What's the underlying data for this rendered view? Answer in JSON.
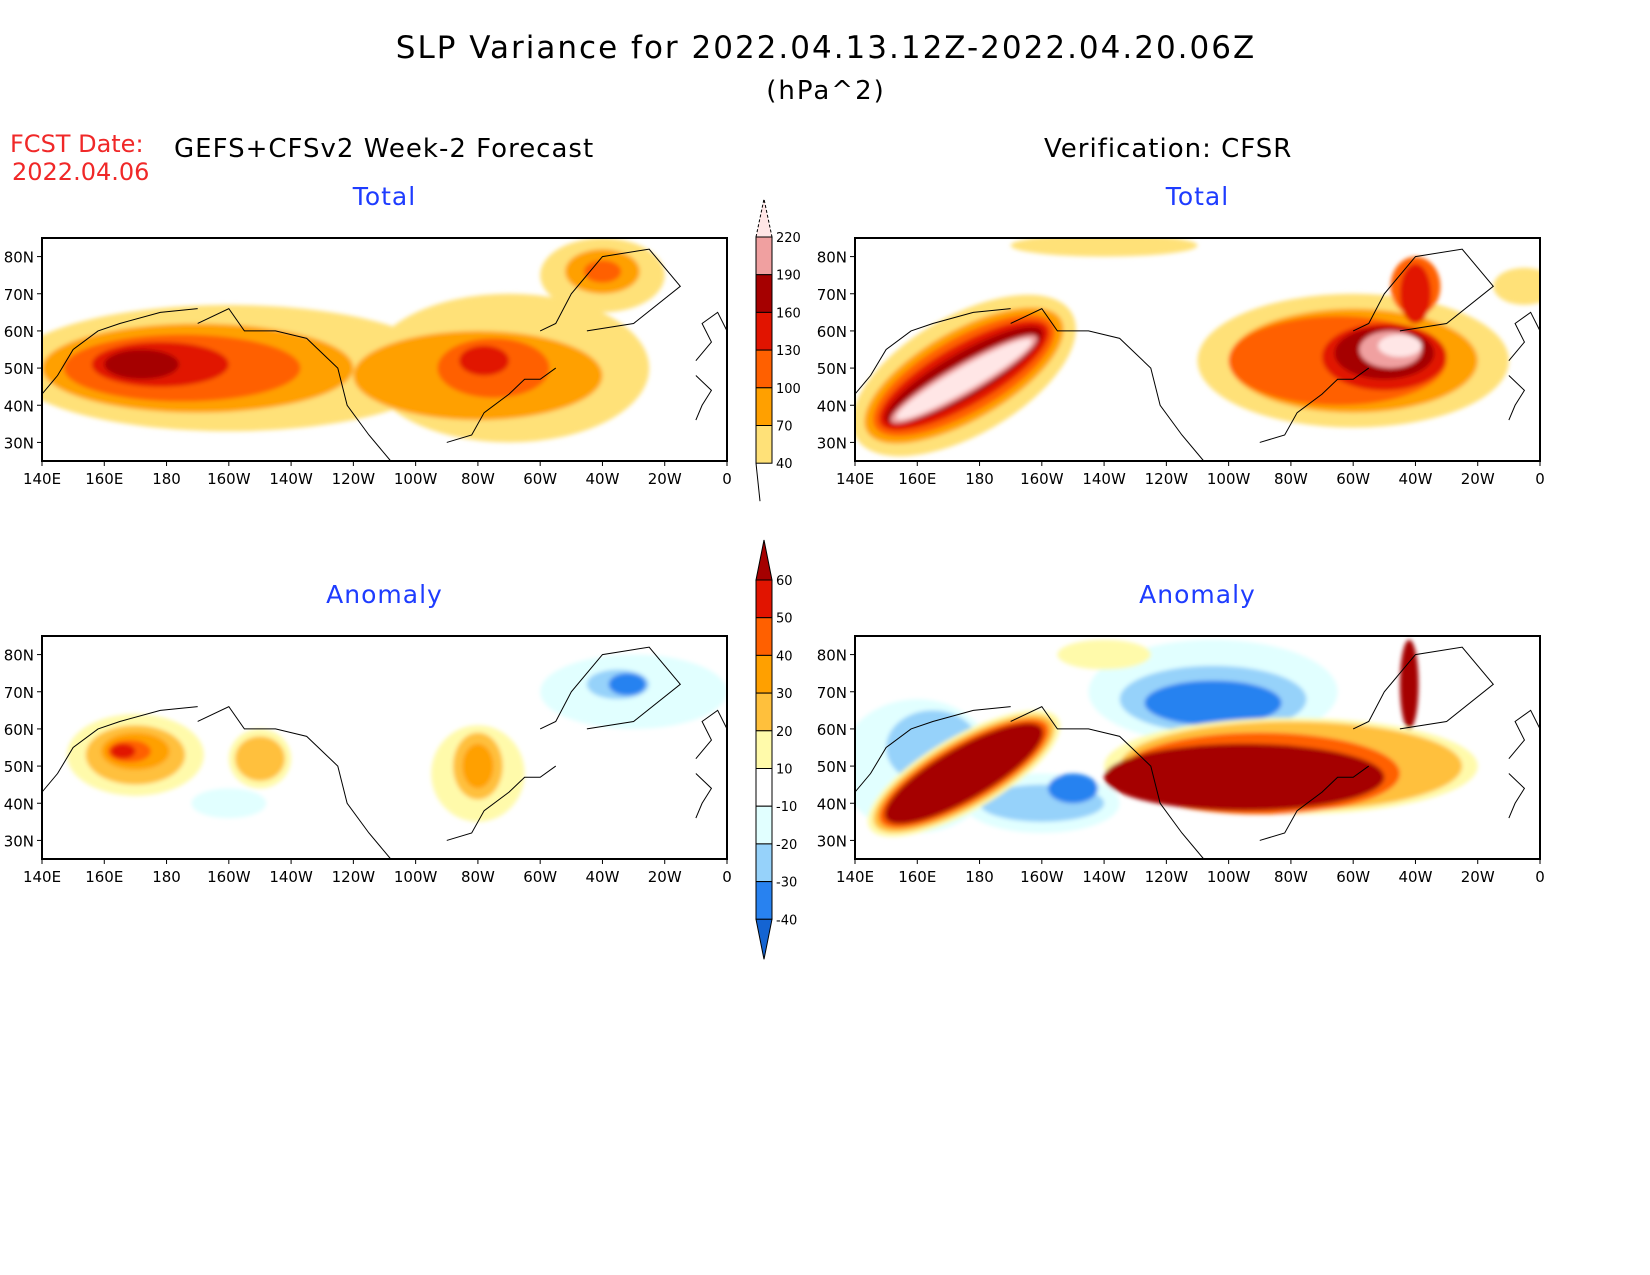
{
  "title": "SLP Variance for 2022.04.13.12Z-2022.04.20.06Z",
  "units": "(hPa^2)",
  "fcst_label": "FCST Date:",
  "fcst_date": "2022.04.06",
  "left_header": "GEFS+CFSv2 Week-2 Forecast",
  "right_header": "Verification: CFSR",
  "panels": [
    {
      "title": "Total",
      "scale": "total"
    },
    {
      "title": "Total",
      "scale": "total"
    },
    {
      "title": "Anomaly",
      "scale": "anom"
    },
    {
      "title": "Anomaly",
      "scale": "anom"
    }
  ],
  "lat_ticks": [
    "80N",
    "70N",
    "60N",
    "50N",
    "40N",
    "30N"
  ],
  "lat_values": [
    80,
    70,
    60,
    50,
    40,
    30
  ],
  "lon_ticks": [
    "140E",
    "160E",
    "180",
    "160W",
    "140W",
    "120W",
    "100W",
    "80W",
    "60W",
    "40W",
    "20W",
    "0"
  ],
  "lon_values": [
    140,
    160,
    180,
    200,
    220,
    240,
    260,
    280,
    300,
    320,
    340,
    360
  ],
  "total_colorbar": {
    "levels": [
      "40",
      "70",
      "100",
      "130",
      "160",
      "190",
      "220"
    ],
    "colors": [
      "#ffe178",
      "#ffa000",
      "#ff6000",
      "#e11400",
      "#a50000",
      "#f0a0a0",
      "#ffe6e6"
    ]
  },
  "anom_colorbar": {
    "levels": [
      "-40",
      "-30",
      "-20",
      "-10",
      "10",
      "20",
      "30",
      "40",
      "50",
      "60"
    ],
    "colors": [
      "#1464d2",
      "#2882f0",
      "#96d2fa",
      "#e1ffff",
      "#ffffff",
      "#fffaaa",
      "#ffc03c",
      "#ffa000",
      "#ff6000",
      "#e11400",
      "#a50000"
    ]
  },
  "chart_data": [
    {
      "type": "heatmap",
      "title": "Total (GEFS+CFSv2 Week-2 Forecast)",
      "xlim": [
        140,
        360
      ],
      "ylim": [
        25,
        85
      ],
      "blobs": [
        [
          200,
          50,
          70,
          17,
          0
        ],
        [
          290,
          50,
          45,
          20,
          0
        ],
        [
          320,
          75,
          20,
          10,
          0
        ],
        [
          190,
          50,
          50,
          12,
          1
        ],
        [
          280,
          48,
          40,
          12,
          1
        ],
        [
          320,
          76,
          12,
          6,
          1
        ],
        [
          185,
          50,
          38,
          9,
          2
        ],
        [
          285,
          50,
          18,
          8,
          2
        ],
        [
          320,
          76,
          6,
          3,
          2
        ],
        [
          178,
          51,
          22,
          6,
          3
        ],
        [
          282,
          52,
          8,
          4,
          3
        ],
        [
          172,
          51,
          12,
          4,
          4
        ]
      ]
    },
    {
      "type": "heatmap",
      "title": "Total (Verification: CFSR)",
      "xlim": [
        140,
        360
      ],
      "ylim": [
        25,
        85
      ],
      "blobs": [
        [
          175,
          48,
          40,
          16,
          0,
          -30
        ],
        [
          220,
          83,
          30,
          3,
          0
        ],
        [
          300,
          52,
          50,
          18,
          0
        ],
        [
          355,
          72,
          10,
          5,
          0
        ],
        [
          175,
          48,
          36,
          12,
          1,
          -30
        ],
        [
          300,
          52,
          40,
          14,
          1
        ],
        [
          175,
          48,
          33,
          10,
          2,
          -30
        ],
        [
          295,
          52,
          35,
          12,
          2
        ],
        [
          320,
          72,
          8,
          8,
          2
        ],
        [
          175,
          48,
          31,
          8,
          3,
          -30
        ],
        [
          310,
          53,
          20,
          9,
          3
        ],
        [
          320,
          70,
          5,
          8,
          3
        ],
        [
          175,
          48,
          29,
          6,
          4,
          -30
        ],
        [
          310,
          54,
          16,
          7,
          4
        ],
        [
          175,
          47,
          27,
          4,
          5,
          -30
        ],
        [
          312,
          55,
          10,
          5,
          5
        ],
        [
          175,
          47,
          25,
          3,
          6,
          -30
        ],
        [
          315,
          56,
          7,
          3,
          6
        ]
      ]
    },
    {
      "type": "heatmap",
      "title": "Anomaly (GEFS+CFSv2 Week-2 Forecast)",
      "xlim": [
        140,
        360
      ],
      "ylim": [
        25,
        85
      ],
      "blobs": [
        [
          330,
          70,
          30,
          10,
          3
        ],
        [
          325,
          72,
          10,
          4,
          2
        ],
        [
          328,
          72,
          6,
          3,
          1
        ],
        [
          200,
          40,
          12,
          4,
          3
        ],
        [
          170,
          53,
          22,
          11,
          5
        ],
        [
          210,
          52,
          10,
          8,
          5
        ],
        [
          280,
          48,
          15,
          13,
          5
        ],
        [
          170,
          53,
          16,
          8,
          6
        ],
        [
          210,
          52,
          8,
          6,
          6
        ],
        [
          280,
          50,
          8,
          9,
          6
        ],
        [
          170,
          54,
          11,
          5,
          7
        ],
        [
          280,
          50,
          5,
          6,
          7
        ],
        [
          168,
          54,
          7,
          3,
          8
        ],
        [
          166,
          54,
          4,
          2,
          9
        ]
      ]
    },
    {
      "type": "heatmap",
      "title": "Anomaly (Verification: CFSR)",
      "xlim": [
        140,
        360
      ],
      "ylim": [
        25,
        85
      ],
      "blobs": [
        [
          255,
          70,
          40,
          14,
          3
        ],
        [
          160,
          50,
          25,
          18,
          3
        ],
        [
          200,
          40,
          25,
          8,
          3
        ],
        [
          255,
          68,
          30,
          9,
          2
        ],
        [
          165,
          55,
          15,
          10,
          2
        ],
        [
          200,
          40,
          20,
          5,
          2
        ],
        [
          255,
          67,
          22,
          6,
          1
        ],
        [
          210,
          44,
          8,
          4,
          1
        ],
        [
          175,
          48,
          35,
          10,
          5,
          -30
        ],
        [
          280,
          50,
          60,
          13,
          5
        ],
        [
          220,
          80,
          15,
          4,
          5
        ],
        [
          175,
          48,
          33,
          9,
          6,
          -30
        ],
        [
          280,
          50,
          55,
          12,
          6
        ],
        [
          175,
          48,
          31,
          8,
          8,
          -30
        ],
        [
          270,
          48,
          45,
          11,
          8
        ],
        [
          175,
          48,
          29,
          7,
          10,
          -30
        ],
        [
          265,
          47,
          45,
          9,
          10
        ],
        [
          318,
          72,
          3,
          12,
          10
        ]
      ]
    }
  ]
}
